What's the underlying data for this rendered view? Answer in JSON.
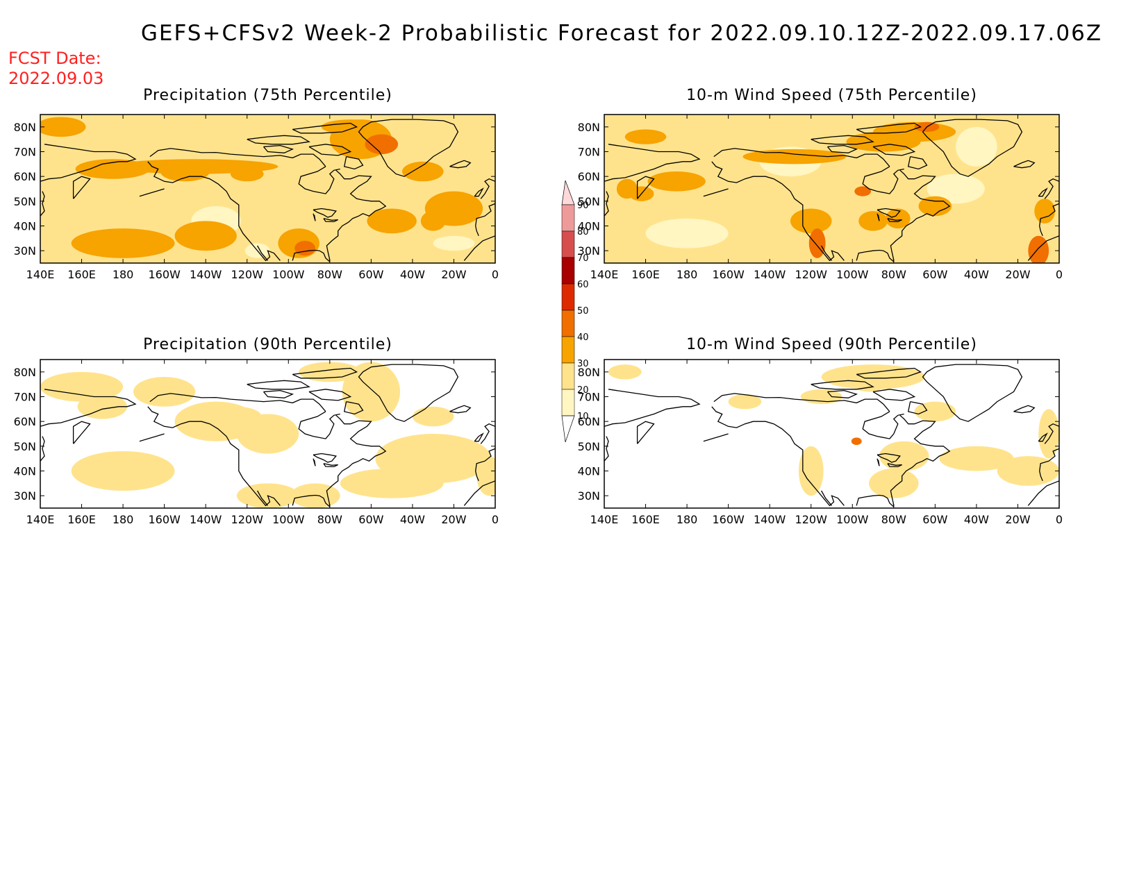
{
  "title": "GEFS+CFSv2 Week-2 Probabilistic Forecast for 2022.09.10.12Z-2022.09.17.06Z",
  "fcst_label": "FCST Date:",
  "fcst_date": "2022.09.03",
  "panels": [
    {
      "title": "Precipitation (75th Percentile)",
      "variant": "p75"
    },
    {
      "title": "10-m Wind Speed (75th Percentile)",
      "variant": "w75"
    },
    {
      "title": "Precipitation (90th Percentile)",
      "variant": "p90"
    },
    {
      "title": "10-m Wind Speed (90th Percentile)",
      "variant": "w90"
    }
  ],
  "lat_labels": [
    "80N",
    "70N",
    "60N",
    "50N",
    "40N",
    "30N"
  ],
  "lon_labels": [
    "140E",
    "160E",
    "180",
    "160W",
    "140W",
    "120W",
    "100W",
    "80W",
    "60W",
    "40W",
    "20W",
    "0"
  ],
  "colorbar": {
    "levels": [
      "10",
      "20",
      "30",
      "40",
      "50",
      "60",
      "70",
      "80",
      "90"
    ],
    "colors": [
      "#fff6c2",
      "#ffe38c",
      "#f7a300",
      "#f06f00",
      "#de2a00",
      "#a80000",
      "#d64e4e",
      "#ef9a9a",
      "#ffd9d9"
    ]
  }
}
